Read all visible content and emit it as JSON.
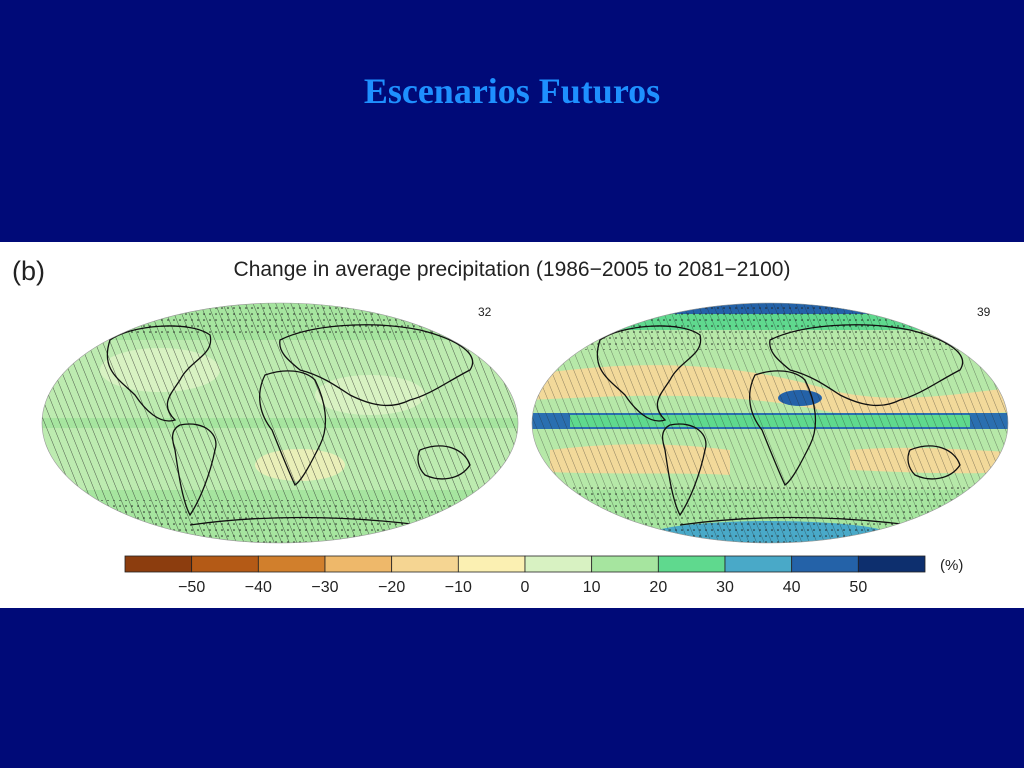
{
  "slide": {
    "title": "Escenarios Futuros"
  },
  "figure": {
    "panel_label": "(b)",
    "heading": "Change in average precipitation (1986−2005 to 2081−2100)",
    "maps": [
      {
        "model_count": "32"
      },
      {
        "model_count": "39"
      }
    ],
    "colorbar": {
      "unit": "(%)",
      "ticks": [
        "−50",
        "−40",
        "−30",
        "−20",
        "−10",
        "0",
        "10",
        "20",
        "30",
        "40",
        "50"
      ],
      "colors": [
        "#8c3d0e",
        "#b45a16",
        "#d17f2c",
        "#eeb86a",
        "#f5d592",
        "#fbf0b2",
        "#d8f2c2",
        "#a6e59f",
        "#5fd98e",
        "#49a9c8",
        "#2462a8",
        "#0d2f6e"
      ]
    },
    "palette": {
      "ocean_green": "#bdebb0",
      "dry": "#f2d99a",
      "wet": "#6fd08c",
      "very_wet": "#2a6fb0"
    }
  }
}
